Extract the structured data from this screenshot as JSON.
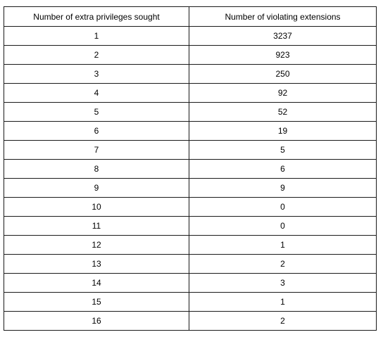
{
  "table": {
    "headers": [
      "Number of extra privileges sought",
      "Number of violating extensions"
    ],
    "rows": [
      [
        "1",
        "3237"
      ],
      [
        "2",
        "923"
      ],
      [
        "3",
        "250"
      ],
      [
        "4",
        "92"
      ],
      [
        "5",
        "52"
      ],
      [
        "6",
        "19"
      ],
      [
        "7",
        "5"
      ],
      [
        "8",
        "6"
      ],
      [
        "9",
        "9"
      ],
      [
        "10",
        "0"
      ],
      [
        "11",
        "0"
      ],
      [
        "12",
        "1"
      ],
      [
        "13",
        "2"
      ],
      [
        "14",
        "3"
      ],
      [
        "15",
        "1"
      ],
      [
        "16",
        "2"
      ]
    ]
  }
}
